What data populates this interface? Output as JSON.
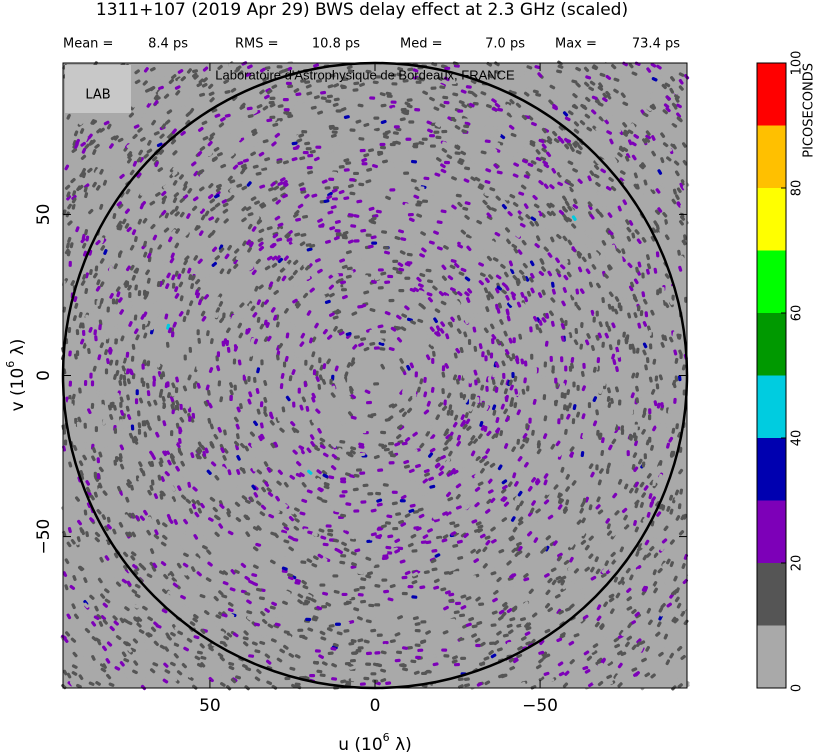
{
  "chart_data": {
    "type": "uvmap",
    "title": "1311+107  (2019 Apr 29)   BWS delay effect at  2.3 GHz (scaled)",
    "stats": [
      {
        "name": "Mean =",
        "value": 8.4,
        "label": "8.4 ps"
      },
      {
        "name": "RMS =",
        "value": 10.8,
        "label": "10.8 ps"
      },
      {
        "name": "Med =",
        "value": 7.0,
        "label": "7.0 ps"
      },
      {
        "name": "Max =",
        "value": 73.4,
        "label": "73.4 ps"
      }
    ],
    "watermark": "Laboratoire d'Astrophysique de Bordeaux, FRANCE",
    "logo": "LAB",
    "xlabel": {
      "text": "u  (10",
      "sup": "6",
      "tail": " λ)"
    },
    "ylabel": {
      "text": "v  (10",
      "sup": "6",
      "tail": " λ)"
    },
    "xlim": [
      94.5,
      -94.5
    ],
    "ylim": [
      -97,
      97
    ],
    "xticks": [
      50,
      0,
      {
        "value": -50,
        "label": "−50"
      }
    ],
    "yticks": [
      50,
      0,
      {
        "value": -50,
        "label": "−50"
      }
    ],
    "colorbar": {
      "label": "PICOSECONDS",
      "levels": [
        0,
        10,
        20,
        30,
        40,
        50,
        60,
        70,
        80,
        90,
        100
      ],
      "colors": [
        "#a9a9a9",
        "#555555",
        "#7d00b8",
        "#0000b0",
        "#00cce0",
        "#009900",
        "#00ff00",
        "#ffff00",
        "#ffc000",
        "#ff0000"
      ],
      "ticks": [
        0,
        20,
        40,
        60,
        80,
        100
      ]
    }
  }
}
